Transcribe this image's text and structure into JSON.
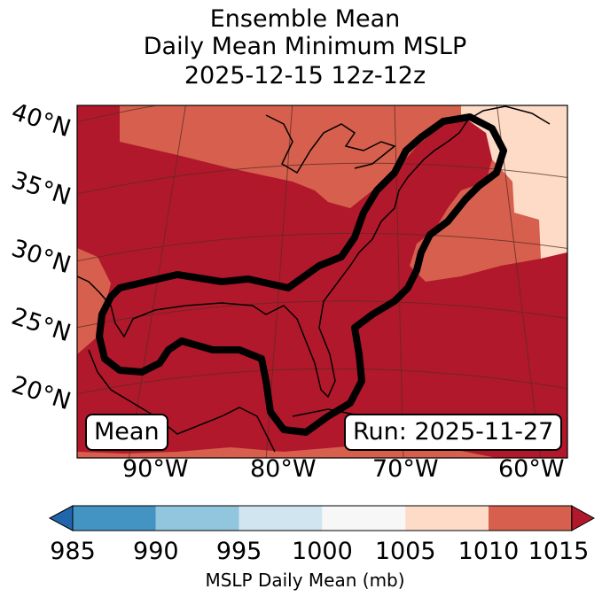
{
  "title": {
    "line1": "Ensemble Mean",
    "line2": "Daily Mean Minimum MSLP",
    "line3": "2025-12-15 12z-12z"
  },
  "map": {
    "lat_labels": [
      "40°N",
      "35°N",
      "30°N",
      "25°N",
      "20°N"
    ],
    "lon_labels": [
      "90°W",
      "80°W",
      "70°W",
      "60°W"
    ],
    "mean_label": "Mean",
    "run_label": "Run: 2025-11-27",
    "colors": {
      "dark_red": "#b2182b",
      "mid_red": "#d6604d",
      "pale": "#fddbc7",
      "contour": "#000000"
    }
  },
  "colorbar": {
    "ticks": [
      "985",
      "990",
      "995",
      "1000",
      "1005",
      "1010",
      "1015"
    ],
    "label": "MSLP Daily Mean (mb)",
    "colors": [
      "#2166ac",
      "#4393c3",
      "#92c5de",
      "#d1e5f0",
      "#f7f7f7",
      "#fddbc7",
      "#d6604d",
      "#b2182b"
    ]
  }
}
